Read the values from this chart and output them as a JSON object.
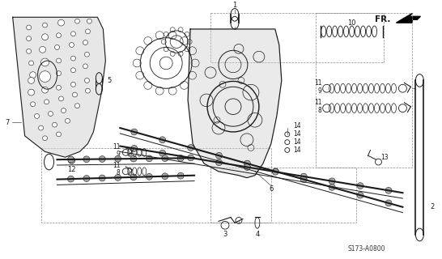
{
  "bg_color": "#ffffff",
  "line_color": "#1a1a1a",
  "fig_width": 5.46,
  "fig_height": 3.2,
  "dpi": 100,
  "diagram_code": "S173-A0800",
  "label_fontsize": 6.0,
  "small_label_fontsize": 5.5
}
